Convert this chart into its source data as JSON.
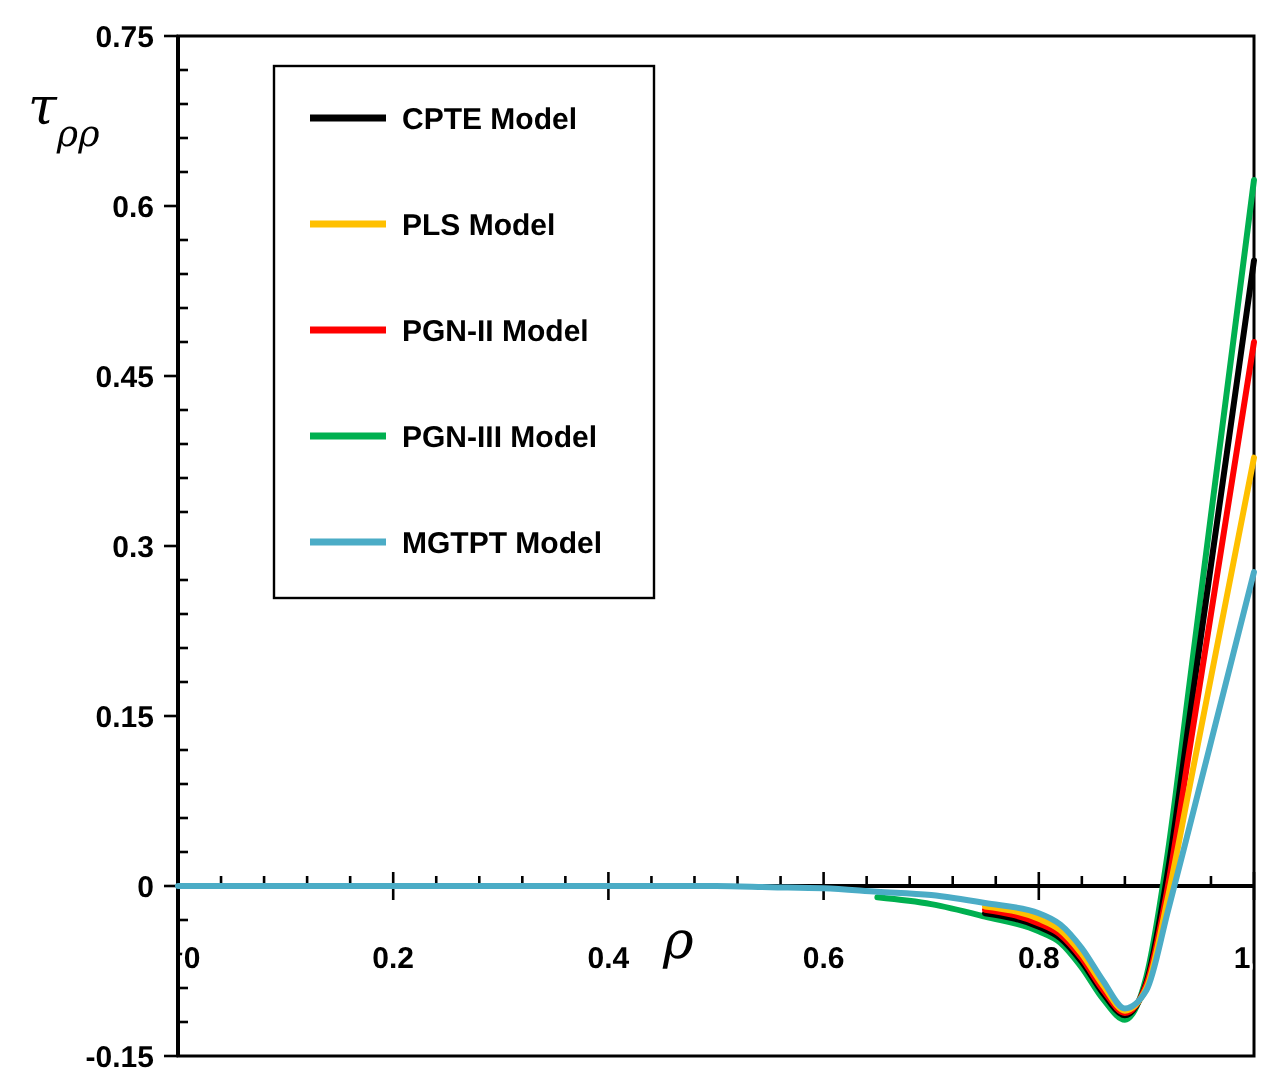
{
  "chart_data": {
    "type": "line",
    "xlabel": "ρ",
    "ylabel": "τ$_{ρρ}$",
    "x": [
      0,
      0.1,
      0.2,
      0.3,
      0.4,
      0.5,
      0.55,
      0.6,
      0.65,
      0.7,
      0.75,
      0.8,
      0.82,
      0.84,
      0.86,
      0.88,
      0.9,
      0.92,
      0.94,
      0.96,
      0.98,
      1
    ],
    "series": [
      {
        "name": "CPTE Model",
        "color": "#000000",
        "values": [
          null,
          null,
          null,
          null,
          null,
          null,
          null,
          null,
          null,
          null,
          -0.024,
          -0.036,
          -0.046,
          -0.067,
          -0.095,
          -0.114,
          -0.085,
          0.013,
          0.148,
          0.283,
          0.417,
          0.552
        ]
      },
      {
        "name": "PLS Model",
        "color": "#ffc000",
        "values": [
          null,
          null,
          null,
          null,
          null,
          null,
          null,
          null,
          null,
          null,
          -0.018,
          -0.029,
          -0.039,
          -0.06,
          -0.088,
          -0.11,
          -0.09,
          -0.01,
          0.087,
          0.184,
          0.281,
          0.378
        ]
      },
      {
        "name": "PGN-II Model",
        "color": "#ff0000",
        "values": [
          null,
          null,
          null,
          null,
          null,
          null,
          null,
          null,
          null,
          null,
          -0.021,
          -0.033,
          -0.043,
          -0.064,
          -0.092,
          -0.112,
          -0.087,
          0,
          0.12,
          0.24,
          0.36,
          0.48
        ]
      },
      {
        "name": "PGN-III Model",
        "color": "#00b050",
        "values": [
          null,
          null,
          null,
          null,
          null,
          null,
          null,
          null,
          -0.01,
          -0.016,
          -0.027,
          -0.04,
          -0.05,
          -0.072,
          -0.1,
          -0.118,
          -0.08,
          0.03,
          0.178,
          0.327,
          0.475,
          0.623
        ]
      },
      {
        "name": "MGTPT Model",
        "color": "#4bacc6",
        "values": [
          0,
          0,
          0,
          0,
          0,
          0,
          -0.001,
          -0.002,
          -0.005,
          -0.008,
          -0.015,
          -0.024,
          -0.034,
          -0.055,
          -0.084,
          -0.108,
          -0.092,
          -0.022,
          0.052,
          0.127,
          0.202,
          0.277
        ]
      }
    ],
    "xlim": [
      0,
      1
    ],
    "xticks": [
      0,
      {
        "value": 0.04,
        "label": null
      },
      {
        "value": 0.08,
        "label": null
      },
      {
        "value": 0.12,
        "label": null
      },
      {
        "value": 0.16,
        "label": null
      },
      0.2,
      {
        "value": 0.24,
        "label": null
      },
      {
        "value": 0.28,
        "label": null
      },
      {
        "value": 0.32,
        "label": null
      },
      {
        "value": 0.36,
        "label": null
      },
      0.4,
      {
        "value": 0.44,
        "label": null
      },
      {
        "value": 0.48,
        "label": null
      },
      {
        "value": 0.52,
        "label": null
      },
      {
        "value": 0.56,
        "label": null
      },
      0.6,
      {
        "value": 0.64,
        "label": null
      },
      {
        "value": 0.68,
        "label": null
      },
      {
        "value": 0.72,
        "label": null
      },
      {
        "value": 0.76,
        "label": null
      },
      0.8,
      {
        "value": 0.84,
        "label": null
      },
      {
        "value": 0.88,
        "label": null
      },
      {
        "value": 0.92,
        "label": null
      },
      {
        "value": 0.96,
        "label": null
      },
      1
    ],
    "ylim": [
      -0.15,
      0.75
    ],
    "yticks": [
      -0.15,
      {
        "value": -0.12,
        "label": null
      },
      {
        "value": -0.09,
        "label": null
      },
      {
        "value": -0.06,
        "label": null
      },
      {
        "value": -0.03,
        "label": null
      },
      0,
      {
        "value": 0.03,
        "label": null
      },
      {
        "value": 0.06,
        "label": null
      },
      {
        "value": 0.09,
        "label": null
      },
      {
        "value": 0.12,
        "label": null
      },
      0.15,
      {
        "value": 0.18,
        "label": null
      },
      {
        "value": 0.21,
        "label": null
      },
      {
        "value": 0.24,
        "label": null
      },
      {
        "value": 0.27,
        "label": null
      },
      0.3,
      {
        "value": 0.33,
        "label": null
      },
      {
        "value": 0.36,
        "label": null
      },
      {
        "value": 0.39,
        "label": null
      },
      {
        "value": 0.42,
        "label": null
      },
      0.45,
      {
        "value": 0.48,
        "label": null
      },
      {
        "value": 0.51,
        "label": null
      },
      {
        "value": 0.54,
        "label": null
      },
      {
        "value": 0.57,
        "label": null
      },
      0.6,
      {
        "value": 0.63,
        "label": null
      },
      {
        "value": 0.66,
        "label": null
      },
      {
        "value": 0.69,
        "label": null
      },
      {
        "value": 0.72,
        "label": null
      },
      0.75
    ],
    "legend": "top left",
    "grid": false,
    "marker": "none",
    "line_style": "solid"
  }
}
